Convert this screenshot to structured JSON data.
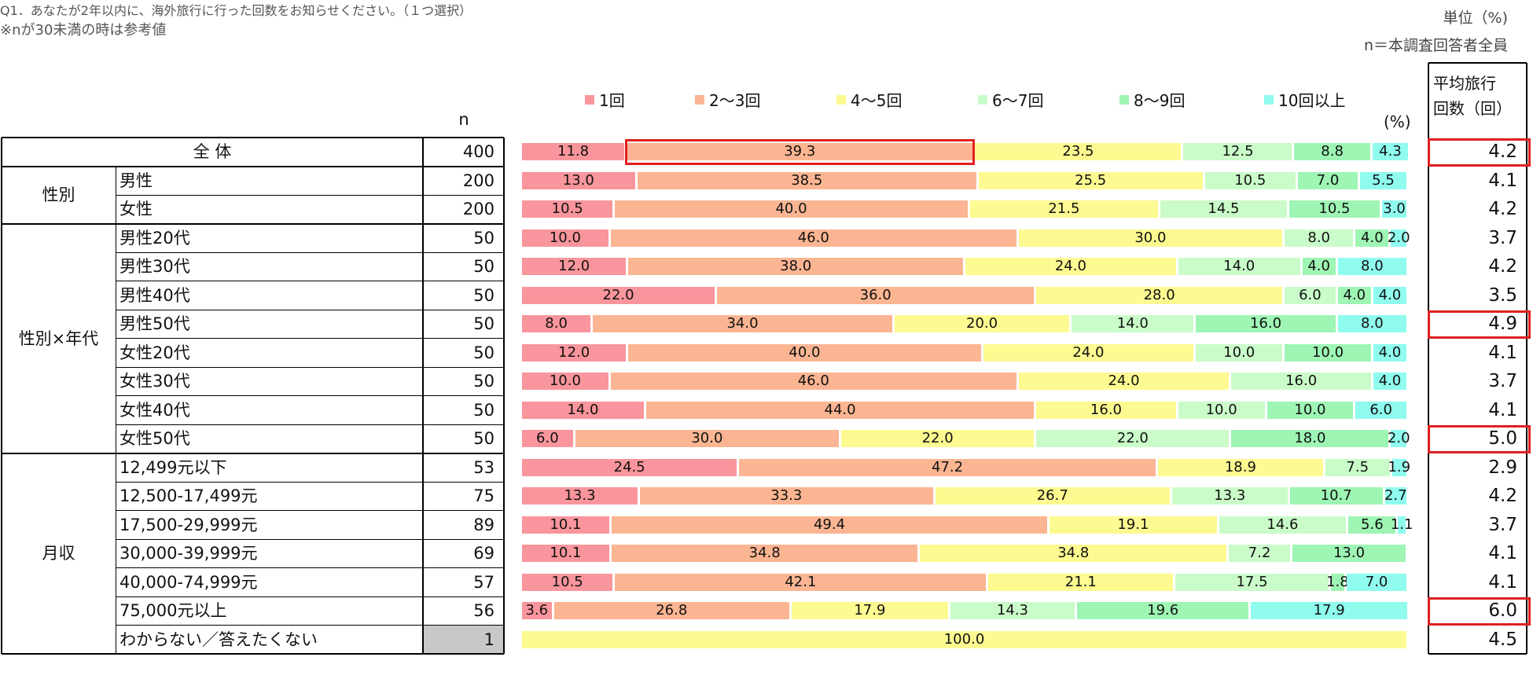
{
  "header": {
    "unit": "単位（%)",
    "base": "n＝本調査回答者全員",
    "question": "Q1．あなたが2年以内に、海外旅行に行った回数をお知らせください。（１つ選択）",
    "n_label": "n",
    "pct_label": "(%)",
    "avg_label_line1": "平均旅行",
    "avg_label_line2": "回数（回）"
  },
  "footnote": "※nが30未満の時は参考値",
  "colors": [
    "#f9959c",
    "#fbb592",
    "#fdfa91",
    "#cafcc9",
    "#9ef5b4",
    "#8ffcee"
  ],
  "chart_data": {
    "type": "stacked-bar-horizontal",
    "title": "Q1．あなたが2年以内に、海外旅行に行った回数をお知らせください。（１つ選択）",
    "unit": "%",
    "legend": [
      "1回",
      "2～3回",
      "4～5回",
      "6～7回",
      "8～9回",
      "10回以上"
    ],
    "groups": [
      {
        "label": "全 体",
        "rows": [
          0
        ]
      },
      {
        "label": "性別",
        "rows": [
          1,
          2
        ]
      },
      {
        "label": "性別×年代",
        "rows": [
          3,
          4,
          5,
          6,
          7,
          8,
          9,
          10
        ]
      },
      {
        "label": "月収",
        "rows": [
          11,
          12,
          13,
          14,
          15,
          16,
          17
        ]
      }
    ],
    "rows": [
      {
        "label": "全 体",
        "n": "400",
        "values": [
          11.8,
          39.3,
          23.5,
          12.5,
          8.8,
          4.3
        ],
        "labels": [
          "11.8",
          "39.3",
          "23.5",
          "12.5",
          "8.8",
          "4.3"
        ],
        "avg": "4.2",
        "avg_highlight": true,
        "segment_highlight": 1
      },
      {
        "label": "男性",
        "n": "200",
        "values": [
          13.0,
          38.5,
          25.5,
          10.5,
          7.0,
          5.5
        ],
        "labels": [
          "13.0",
          "38.5",
          "25.5",
          "10.5",
          "7.0",
          "5.5"
        ],
        "avg": "4.1"
      },
      {
        "label": "女性",
        "n": "200",
        "values": [
          10.5,
          40.0,
          21.5,
          14.5,
          10.5,
          3.0
        ],
        "labels": [
          "10.5",
          "40.0",
          "21.5",
          "14.5",
          "10.5",
          "3.0"
        ],
        "avg": "4.2"
      },
      {
        "label": "男性20代",
        "n": "50",
        "values": [
          10.0,
          46.0,
          30.0,
          8.0,
          4.0,
          2.0
        ],
        "labels": [
          "10.0",
          "46.0",
          "30.0",
          "8.0",
          "4.0",
          "2.0"
        ],
        "avg": "3.7"
      },
      {
        "label": "男性30代",
        "n": "50",
        "values": [
          12.0,
          38.0,
          24.0,
          14.0,
          4.0,
          8.0
        ],
        "labels": [
          "12.0",
          "38.0",
          "24.0",
          "14.0",
          "4.0",
          "8.0"
        ],
        "avg": "4.2"
      },
      {
        "label": "男性40代",
        "n": "50",
        "values": [
          22.0,
          36.0,
          28.0,
          6.0,
          4.0,
          4.0
        ],
        "labels": [
          "22.0",
          "36.0",
          "28.0",
          "6.0",
          "4.0",
          "4.0"
        ],
        "avg": "3.5"
      },
      {
        "label": "男性50代",
        "n": "50",
        "values": [
          8.0,
          34.0,
          20.0,
          14.0,
          16.0,
          8.0
        ],
        "labels": [
          "8.0",
          "34.0",
          "20.0",
          "14.0",
          "16.0",
          "8.0"
        ],
        "avg": "4.9",
        "avg_highlight": true
      },
      {
        "label": "女性20代",
        "n": "50",
        "values": [
          12.0,
          40.0,
          24.0,
          10.0,
          10.0,
          4.0
        ],
        "labels": [
          "12.0",
          "40.0",
          "24.0",
          "10.0",
          "10.0",
          "4.0"
        ],
        "avg": "4.1"
      },
      {
        "label": "女性30代",
        "n": "50",
        "values": [
          10.0,
          46.0,
          24.0,
          16.0,
          0,
          4.0
        ],
        "labels": [
          "10.0",
          "46.0",
          "24.0",
          "16.0",
          "",
          "4.0"
        ],
        "avg": "3.7"
      },
      {
        "label": "女性40代",
        "n": "50",
        "values": [
          14.0,
          44.0,
          16.0,
          10.0,
          10.0,
          6.0
        ],
        "labels": [
          "14.0",
          "44.0",
          "16.0",
          "10.0",
          "10.0",
          "6.0"
        ],
        "avg": "4.1"
      },
      {
        "label": "女性50代",
        "n": "50",
        "values": [
          6.0,
          30.0,
          22.0,
          22.0,
          18.0,
          2.0
        ],
        "labels": [
          "6.0",
          "30.0",
          "22.0",
          "22.0",
          "18.0",
          "2.0"
        ],
        "avg": "5.0",
        "avg_highlight": true
      },
      {
        "label": "12,499元以下",
        "n": "53",
        "values": [
          24.5,
          47.2,
          18.9,
          7.5,
          0,
          1.9
        ],
        "labels": [
          "24.5",
          "47.2",
          "18.9",
          "7.5",
          "",
          "1.9"
        ],
        "avg": "2.9"
      },
      {
        "label": "12,500-17,499元",
        "n": "75",
        "values": [
          13.3,
          33.3,
          26.7,
          13.3,
          10.7,
          2.7
        ],
        "labels": [
          "13.3",
          "33.3",
          "26.7",
          "13.3",
          "10.7",
          "2.7"
        ],
        "avg": "4.2"
      },
      {
        "label": "17,500-29,999元",
        "n": "89",
        "values": [
          10.1,
          49.4,
          19.1,
          14.6,
          5.6,
          1.1
        ],
        "labels": [
          "10.1",
          "49.4",
          "19.1",
          "14.6",
          "5.6",
          "1.1"
        ],
        "avg": "3.7"
      },
      {
        "label": "30,000-39,999元",
        "n": "69",
        "values": [
          10.1,
          34.8,
          34.8,
          7.2,
          13.0,
          0
        ],
        "labels": [
          "10.1",
          "34.8",
          "34.8",
          "7.2",
          "13.0",
          ""
        ],
        "avg": "4.1"
      },
      {
        "label": "40,000-74,999元",
        "n": "57",
        "values": [
          10.5,
          42.1,
          21.1,
          17.5,
          1.8,
          7.0
        ],
        "labels": [
          "10.5",
          "42.1",
          "21.1",
          "17.5",
          "1.8",
          "7.0"
        ],
        "avg": "4.1"
      },
      {
        "label": "75,000元以上",
        "n": "56",
        "values": [
          3.6,
          26.8,
          17.9,
          14.3,
          19.6,
          17.9
        ],
        "labels": [
          "3.6",
          "26.8",
          "17.9",
          "14.3",
          "19.6",
          "17.9"
        ],
        "avg": "6.0",
        "avg_highlight": true
      },
      {
        "label": "わからない／答えたくない",
        "n": "1",
        "values": [
          0,
          0,
          100.0,
          0,
          0,
          0
        ],
        "labels": [
          "",
          "",
          "100.0",
          "",
          "",
          ""
        ],
        "avg": "4.5",
        "n_gray": true
      }
    ]
  }
}
